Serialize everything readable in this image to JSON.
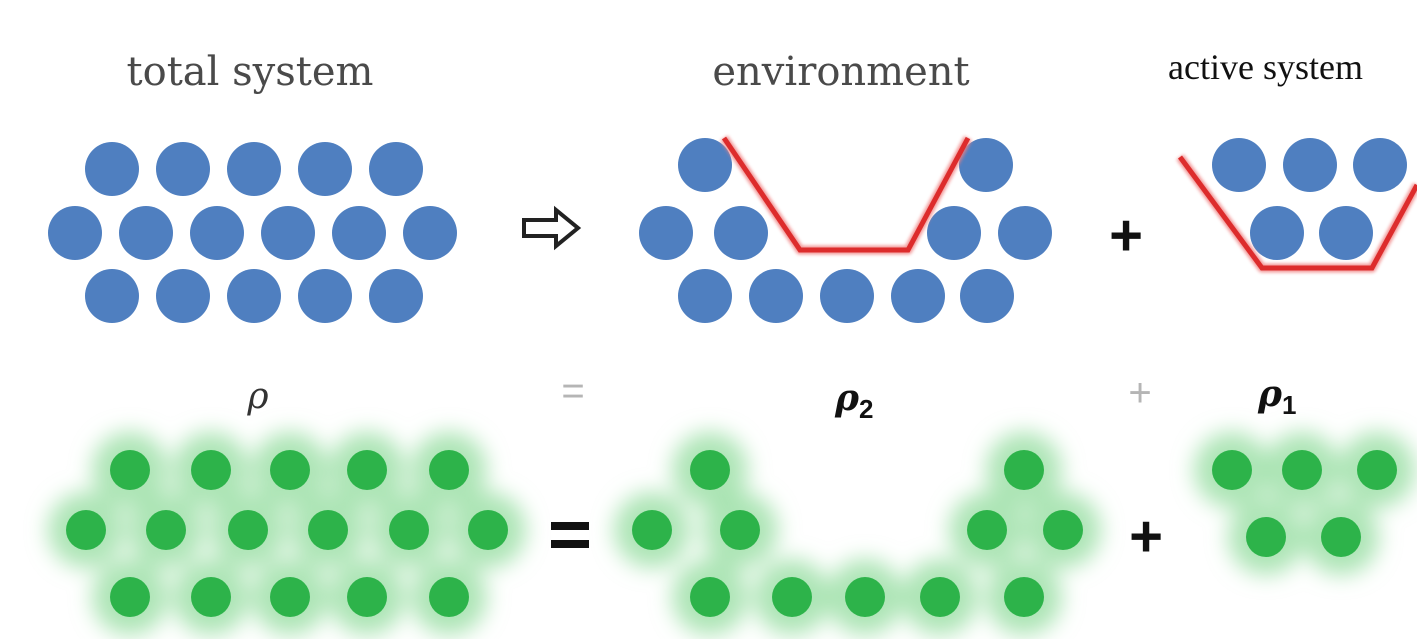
{
  "labels": {
    "total_system": "total system",
    "environment": "environment",
    "active_system": "active system"
  },
  "symbols": {
    "rho": "ρ",
    "rho_2_base": "ρ",
    "rho_2_sub": "2",
    "rho_1_base": "ρ",
    "rho_1_sub": "1",
    "equals_faint": "=",
    "plus_faint": "+",
    "plus_top": "+",
    "equals_bottom": "=",
    "plus_bottom": "+"
  },
  "colors": {
    "atom_blue": "#4f7fc0",
    "cut_red": "#e03030",
    "density_green": "#2db34a",
    "halo_green": "#9fe0a9",
    "faint_gray": "#9a9a9a",
    "text_dark": "#333333"
  },
  "icons": {
    "arrow": "hollow-right-arrow-icon"
  }
}
